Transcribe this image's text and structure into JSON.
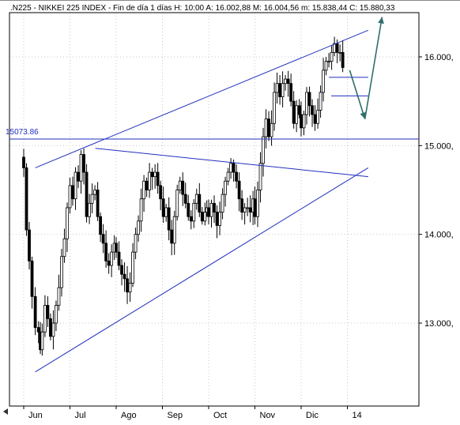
{
  "header": {
    "text": ".N225 - NIKKEI 225 INDEX - Fin de día 1 días  H: 10:00  A: 16.002,88  M: 16.004,56  m: 15.838,44  C: 15.880,33"
  },
  "chart_data": {
    "type": "candlestick",
    "title": ".N225 - NIKKEI 225 INDEX",
    "ylim": [
      12250,
      16650
    ],
    "y_ticks": [
      {
        "value": 13000,
        "label": "13.000,"
      },
      {
        "value": 14000,
        "label": "14.000,"
      },
      {
        "value": 15000,
        "label": "15.000,"
      },
      {
        "value": 16000,
        "label": "16.000,"
      }
    ],
    "x_ticks": [
      {
        "month": 0,
        "label": "Jun"
      },
      {
        "month": 1,
        "label": "Jul"
      },
      {
        "month": 2,
        "label": "Ago"
      },
      {
        "month": 3,
        "label": "Sep"
      },
      {
        "month": 4,
        "label": "Oct"
      },
      {
        "month": 5,
        "label": "Nov"
      },
      {
        "month": 6,
        "label": "Dic"
      },
      {
        "month": 7,
        "label": "14"
      }
    ],
    "horizontal_level": {
      "value": 15073.86,
      "label": "15073.86"
    },
    "series_close": [
      [
        0.0,
        14750
      ],
      [
        0.06,
        14050
      ],
      [
        0.12,
        13700
      ],
      [
        0.18,
        13300
      ],
      [
        0.25,
        12950
      ],
      [
        0.32,
        12900
      ],
      [
        0.36,
        12700
      ],
      [
        0.4,
        12900
      ],
      [
        0.46,
        13200
      ],
      [
        0.52,
        13050
      ],
      [
        0.58,
        12850
      ],
      [
        0.64,
        13000
      ],
      [
        0.7,
        13200
      ],
      [
        0.76,
        13400
      ],
      [
        0.82,
        13750
      ],
      [
        0.88,
        13950
      ],
      [
        0.94,
        14300
      ],
      [
        1.0,
        14550
      ],
      [
        1.06,
        14400
      ],
      [
        1.12,
        14700
      ],
      [
        1.18,
        14600
      ],
      [
        1.24,
        14900
      ],
      [
        1.3,
        14700
      ],
      [
        1.36,
        14200
      ],
      [
        1.42,
        14350
      ],
      [
        1.48,
        14450
      ],
      [
        1.54,
        14500
      ],
      [
        1.6,
        14200
      ],
      [
        1.66,
        14000
      ],
      [
        1.72,
        13900
      ],
      [
        1.78,
        13700
      ],
      [
        1.84,
        13650
      ],
      [
        1.9,
        13800
      ],
      [
        1.96,
        13900
      ],
      [
        2.0,
        13800
      ],
      [
        2.06,
        13650
      ],
      [
        2.12,
        13550
      ],
      [
        2.18,
        13500
      ],
      [
        2.24,
        13350
      ],
      [
        2.3,
        13450
      ],
      [
        2.36,
        13800
      ],
      [
        2.42,
        14000
      ],
      [
        2.48,
        14150
      ],
      [
        2.54,
        14400
      ],
      [
        2.6,
        14600
      ],
      [
        2.66,
        14500
      ],
      [
        2.72,
        14700
      ],
      [
        2.78,
        14650
      ],
      [
        2.84,
        14700
      ],
      [
        2.9,
        14550
      ],
      [
        2.96,
        14400
      ],
      [
        3.02,
        14200
      ],
      [
        3.08,
        14300
      ],
      [
        3.14,
        14050
      ],
      [
        3.2,
        13900
      ],
      [
        3.26,
        14200
      ],
      [
        3.32,
        14500
      ],
      [
        3.38,
        14600
      ],
      [
        3.44,
        14450
      ],
      [
        3.5,
        14350
      ],
      [
        3.56,
        14200
      ],
      [
        3.62,
        14150
      ],
      [
        3.68,
        14350
      ],
      [
        3.74,
        14450
      ],
      [
        3.8,
        14250
      ],
      [
        3.86,
        14150
      ],
      [
        3.92,
        14250
      ],
      [
        3.96,
        14300
      ],
      [
        4.0,
        14200
      ],
      [
        4.06,
        14350
      ],
      [
        4.12,
        14250
      ],
      [
        4.18,
        14100
      ],
      [
        4.24,
        14250
      ],
      [
        4.3,
        14450
      ],
      [
        4.36,
        14600
      ],
      [
        4.42,
        14700
      ],
      [
        4.48,
        14800
      ],
      [
        4.54,
        14700
      ],
      [
        4.6,
        14600
      ],
      [
        4.66,
        14400
      ],
      [
        4.72,
        14250
      ],
      [
        4.78,
        14300
      ],
      [
        4.84,
        14300
      ],
      [
        4.9,
        14250
      ],
      [
        4.96,
        14400
      ],
      [
        5.0,
        14200
      ],
      [
        5.06,
        14500
      ],
      [
        5.12,
        14800
      ],
      [
        5.18,
        15100
      ],
      [
        5.24,
        15300
      ],
      [
        5.3,
        15100
      ],
      [
        5.36,
        15250
      ],
      [
        5.42,
        15600
      ],
      [
        5.48,
        15700
      ],
      [
        5.54,
        15550
      ],
      [
        5.6,
        15700
      ],
      [
        5.66,
        15750
      ],
      [
        5.72,
        15700
      ],
      [
        5.78,
        15500
      ],
      [
        5.84,
        15250
      ],
      [
        5.9,
        15450
      ],
      [
        5.96,
        15350
      ],
      [
        6.0,
        15200
      ],
      [
        6.06,
        15350
      ],
      [
        6.12,
        15600
      ],
      [
        6.18,
        15450
      ],
      [
        6.24,
        15350
      ],
      [
        6.3,
        15250
      ],
      [
        6.36,
        15400
      ],
      [
        6.42,
        15600
      ],
      [
        6.48,
        15850
      ],
      [
        6.54,
        15950
      ],
      [
        6.6,
        15950
      ],
      [
        6.66,
        16050
      ],
      [
        6.72,
        16150
      ],
      [
        6.78,
        16050
      ],
      [
        6.84,
        16050
      ],
      [
        6.9,
        15880
      ]
    ],
    "trendlines": [
      {
        "name": "upper-channel",
        "x1": 0.25,
        "y1": 14750,
        "x2": 7.45,
        "y2": 16300
      },
      {
        "name": "lower-channel",
        "x1": 0.25,
        "y1": 12450,
        "x2": 7.45,
        "y2": 14750
      },
      {
        "name": "falling-line",
        "x1": 1.55,
        "y1": 14970,
        "x2": 7.45,
        "y2": 14650
      },
      {
        "name": "mark-high",
        "x1": 6.6,
        "y1": 15770,
        "x2": 7.45,
        "y2": 15770
      },
      {
        "name": "mark-low",
        "x1": 6.65,
        "y1": 15560,
        "x2": 7.45,
        "y2": 15560
      }
    ],
    "arrows": [
      {
        "name": "down-arrow",
        "from": [
          7.05,
          15850
        ],
        "to": [
          7.38,
          15300
        ]
      },
      {
        "name": "up-arrow",
        "from": [
          7.38,
          15300
        ],
        "to": [
          7.75,
          16450
        ]
      }
    ]
  },
  "colors": {
    "candle": "#000000",
    "trendline": "#1f2fbf",
    "arrow": "#2f6f6a",
    "grid": "#c8c8c8",
    "frame": "#000000"
  }
}
